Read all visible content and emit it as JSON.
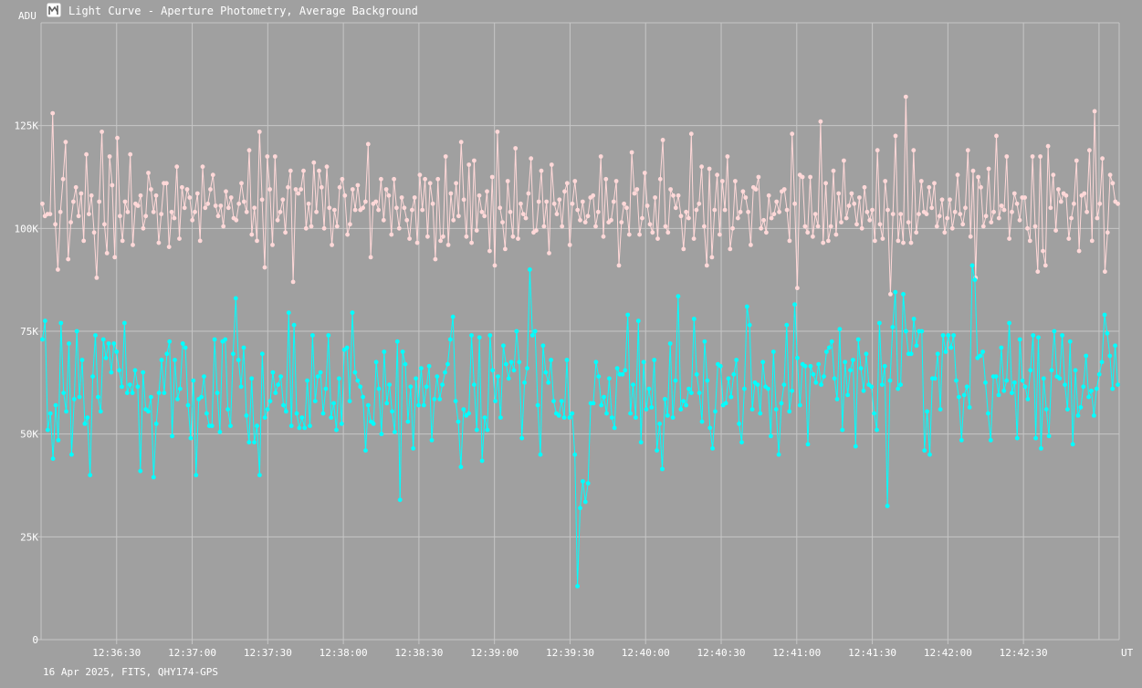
{
  "header": {
    "title": "Light Curve - Aperture Photometry, Average Background",
    "icon": "light-curve-app-icon"
  },
  "footer": {
    "caption": "16 Apr 2025, FITS, QHY174-GPS"
  },
  "colors": {
    "background": "#a0a0a0",
    "grid": "#c6c6c6",
    "axis_text": "#ffffff",
    "series_1": "#ffd8d8",
    "series_2": "#00ffff"
  },
  "chart_data": {
    "type": "line",
    "ylabel": "ADU",
    "xlabel": "UT",
    "ylim": [
      0,
      150000
    ],
    "y_ticks": [
      0,
      25000,
      50000,
      75000,
      100000,
      125000
    ],
    "y_tick_labels": [
      "0",
      "25K",
      "50K",
      "75K",
      "100K",
      "125K"
    ],
    "x_start": "12:36:00",
    "x_end": "12:43:08",
    "x_tick_labels": [
      "12:36:30",
      "12:37:00",
      "12:37:30",
      "12:38:00",
      "12:38:30",
      "12:39:00",
      "12:39:30",
      "12:40:00",
      "12:40:30",
      "12:41:00",
      "12:41:30",
      "12:42:00",
      "12:42:30"
    ],
    "grid": true,
    "series": [
      {
        "values": [
          106000,
          103000,
          103500,
          103500,
          128000,
          101000,
          90000,
          104000,
          112000,
          121000,
          92500,
          101500,
          106500,
          110000,
          103000,
          108500,
          97000,
          118000,
          103500,
          108000,
          99000,
          88000,
          106500,
          123500,
          101000,
          94000,
          117500,
          110500,
          93000,
          122000,
          103000,
          97000,
          106500,
          104000,
          118000,
          96000,
          106000,
          105500,
          108000,
          100000,
          103000,
          113500,
          109500,
          104000,
          108000,
          96500,
          103500,
          111000,
          111000,
          95500,
          104000,
          102500,
          115000,
          97500,
          110000,
          105000,
          109500,
          107500,
          102000,
          104000,
          108500,
          97000,
          115000,
          105000,
          106000,
          109500,
          113000,
          105500,
          103000,
          105500,
          100500,
          109000,
          105000,
          107500,
          102500,
          102000,
          106000,
          111000,
          106500,
          104000,
          119000,
          98500,
          105000,
          97000,
          123500,
          107000,
          90500,
          117500,
          109500,
          96000,
          117500,
          102000,
          104000,
          107000,
          99000,
          110000,
          114000,
          87000,
          109500,
          108500,
          109500,
          114000,
          100000,
          106000,
          100500,
          116000,
          104000,
          114000,
          110000,
          100000,
          115000,
          105000,
          96000,
          104500,
          100500,
          110000,
          112000,
          108000,
          98500,
          101000,
          109500,
          104500,
          110500,
          104500,
          105000,
          106500,
          120500,
          93000,
          106000,
          106500,
          104500,
          112000,
          102000,
          109500,
          108000,
          98500,
          112000,
          105000,
          100000,
          107500,
          105000,
          102000,
          97500,
          104500,
          107500,
          96500,
          113000,
          104500,
          112000,
          98000,
          111000,
          106000,
          92500,
          112000,
          97000,
          98000,
          117500,
          96000,
          108500,
          102000,
          111000,
          103000,
          121000,
          107000,
          98000,
          115500,
          96500,
          116500,
          99500,
          108000,
          104000,
          103000,
          109000,
          94500,
          112500,
          91000,
          123500,
          105000,
          101500,
          95000,
          111500,
          104000,
          98000,
          119500,
          97500,
          106000,
          103500,
          102500,
          108500,
          117000,
          99000,
          99500,
          106500,
          114000,
          100500,
          106500,
          94000,
          115500,
          106000,
          103500,
          107000,
          100500,
          109000,
          111000,
          96000,
          106000,
          111500,
          104500,
          102000,
          106500,
          101500,
          103000,
          107500,
          108000,
          100500,
          104000,
          117500,
          98000,
          112000,
          101500,
          102000,
          106500,
          111500,
          91000,
          101500,
          106000,
          105000,
          98500,
          118500,
          108500,
          109500,
          98500,
          102500,
          113500,
          105500,
          101000,
          99000,
          107500,
          97500,
          112000,
          121500,
          100500,
          99000,
          109500,
          108000,
          105000,
          108000,
          103000,
          95000,
          104000,
          102500,
          123000,
          97500,
          104500,
          106000,
          115000,
          100500,
          91000,
          114500,
          93000,
          104500,
          113000,
          98500,
          111500,
          104500,
          117500,
          95000,
          100000,
          111500,
          102500,
          104000,
          109000,
          107500,
          104000,
          96000,
          110000,
          109500,
          112500,
          100000,
          102000,
          99000,
          108000,
          102500,
          103500,
          106500,
          104000,
          109000,
          109500,
          104500,
          97000,
          123000,
          106000,
          85500,
          113000,
          112500,
          100500,
          99000,
          112500,
          98000,
          103500,
          100500,
          126000,
          96500,
          111000,
          97000,
          100500,
          114000,
          98500,
          108500,
          101500,
          116500,
          102500,
          105500,
          108500,
          106000,
          101000,
          107500,
          100000,
          110000,
          104000,
          102000,
          104500,
          97000,
          119000,
          101000,
          97500,
          111500,
          104500,
          84000,
          103500,
          122500,
          97000,
          103500,
          96500,
          132000,
          101500,
          96500,
          119000,
          99000,
          103500,
          111500,
          104000,
          103500,
          110000,
          105000,
          111000,
          100500,
          103000,
          107000,
          99000,
          102500,
          107000,
          100000,
          104000,
          113000,
          103500,
          101000,
          105000,
          119000,
          98000,
          114000,
          88000,
          112500,
          110000,
          100500,
          103000,
          114500,
          101500,
          104000,
          122500,
          102500,
          105500,
          104500,
          117500,
          97500,
          104000,
          108500,
          106000,
          102000,
          107500,
          107500,
          100000,
          97000,
          117500,
          100500,
          89500,
          117500,
          94500,
          91000,
          120000,
          105000,
          113000,
          99500,
          109500,
          106500,
          108500,
          108000,
          97500,
          102500,
          106000,
          116500,
          94500,
          108000,
          108500,
          104000,
          119000,
          97000,
          128500,
          102500,
          106000,
          117000,
          89500,
          99000,
          113000,
          111000,
          106500,
          106000
        ],
        "color": "#ffd8d8"
      },
      {
        "values": [
          73000,
          77500,
          51000,
          55000,
          44000,
          57000,
          48500,
          77000,
          60000,
          55500,
          72000,
          45000,
          58500,
          75000,
          59000,
          68000,
          52500,
          54000,
          40000,
          64000,
          74000,
          59000,
          55500,
          73000,
          68500,
          72000,
          65000,
          72000,
          70000,
          65500,
          61500,
          77000,
          60000,
          62000,
          60000,
          65500,
          61500,
          41000,
          65000,
          56000,
          55500,
          59000,
          39500,
          52500,
          60000,
          68000,
          60000,
          69500,
          72500,
          49500,
          68000,
          58500,
          61000,
          72000,
          71000,
          57000,
          49000,
          63000,
          40000,
          58500,
          59000,
          64000,
          55000,
          52000,
          52000,
          73000,
          60000,
          50500,
          72500,
          73000,
          56000,
          52000,
          69500,
          83000,
          68000,
          61500,
          71000,
          54500,
          48000,
          63500,
          48000,
          52000,
          40000,
          69500,
          54000,
          56000,
          58000,
          65000,
          60000,
          62000,
          64000,
          57000,
          55500,
          79500,
          52000,
          76500,
          55000,
          51500,
          54000,
          51500,
          63000,
          52000,
          74000,
          58000,
          64000,
          65000,
          55000,
          61000,
          74000,
          54000,
          57500,
          51000,
          63500,
          52500,
          70500,
          71000,
          58000,
          79500,
          65000,
          63000,
          61500,
          59000,
          46000,
          57000,
          53000,
          52500,
          67500,
          61000,
          50000,
          70000,
          57500,
          62000,
          55500,
          50500,
          72500,
          34000,
          70000,
          67000,
          53000,
          61500,
          46500,
          63500,
          57000,
          66000,
          57000,
          61500,
          66500,
          48500,
          58500,
          64000,
          58500,
          62000,
          65000,
          67000,
          73000,
          78500,
          58000,
          53000,
          42000,
          56000,
          54500,
          55000,
          74000,
          62000,
          51000,
          73500,
          43500,
          54000,
          51000,
          74000,
          65500,
          58000,
          64000,
          54000,
          71500,
          67000,
          63500,
          67500,
          65500,
          75000,
          67500,
          49000,
          62500,
          66000,
          90000,
          74000,
          75000,
          57000,
          45000,
          71500,
          65000,
          62500,
          68000,
          58000,
          55000,
          54500,
          58000,
          54000,
          68000,
          54000,
          55000,
          45000,
          13000,
          32000,
          38500,
          33500,
          38000,
          57500,
          57500,
          67500,
          64000,
          57000,
          59000,
          55000,
          63500,
          54000,
          51500,
          66000,
          64500,
          64500,
          65500,
          79000,
          55000,
          62000,
          54000,
          77500,
          48000,
          67500,
          56000,
          61000,
          56500,
          68000,
          46000,
          52500,
          41500,
          58500,
          54500,
          72000,
          54000,
          63000,
          83500,
          56000,
          58000,
          57000,
          61000,
          60000,
          78000,
          64500,
          60000,
          53000,
          72500,
          63000,
          51500,
          46500,
          55500,
          67000,
          66500,
          57000,
          57500,
          63500,
          59000,
          64500,
          68000,
          52500,
          48000,
          61000,
          81000,
          76500,
          56000,
          62500,
          62000,
          55000,
          67500,
          61500,
          61000,
          49500,
          70000,
          56000,
          45000,
          57500,
          62000,
          76500,
          55500,
          60500,
          81500,
          68500,
          57000,
          67000,
          66500,
          47500,
          66500,
          64500,
          62500,
          67000,
          62000,
          64000,
          70000,
          71000,
          72500,
          63500,
          58500,
          75500,
          51000,
          67500,
          59500,
          65500,
          68000,
          47000,
          73000,
          66000,
          60500,
          69500,
          62000,
          61500,
          55000,
          51000,
          77000,
          62000,
          66500,
          32500,
          63000,
          76000,
          84500,
          61000,
          62000,
          84000,
          75000,
          69500,
          69500,
          78000,
          71500,
          75000,
          75000,
          46000,
          55500,
          45000,
          63500,
          63500,
          69500,
          56000,
          74000,
          70000,
          74000,
          71000,
          74000,
          63000,
          59000,
          48500,
          59500,
          61500,
          56500,
          91000,
          87500,
          68500,
          69000,
          70000,
          62500,
          55000,
          48500,
          64000,
          64000,
          59500,
          71000,
          60500,
          63000,
          77000,
          60000,
          62500,
          49000,
          73000,
          63000,
          61500,
          58500,
          65500,
          74000,
          49000,
          73500,
          46500,
          63500,
          56000,
          49500,
          65500,
          75000,
          64000,
          63500,
          74000,
          62000,
          56000,
          72500,
          47500,
          65500,
          54500,
          56500,
          61500,
          69000,
          59000,
          60500,
          54500,
          61000,
          64500,
          67500,
          79000,
          74500,
          69000,
          61000,
          71500,
          62000
        ],
        "color": "#00ffff"
      }
    ]
  }
}
